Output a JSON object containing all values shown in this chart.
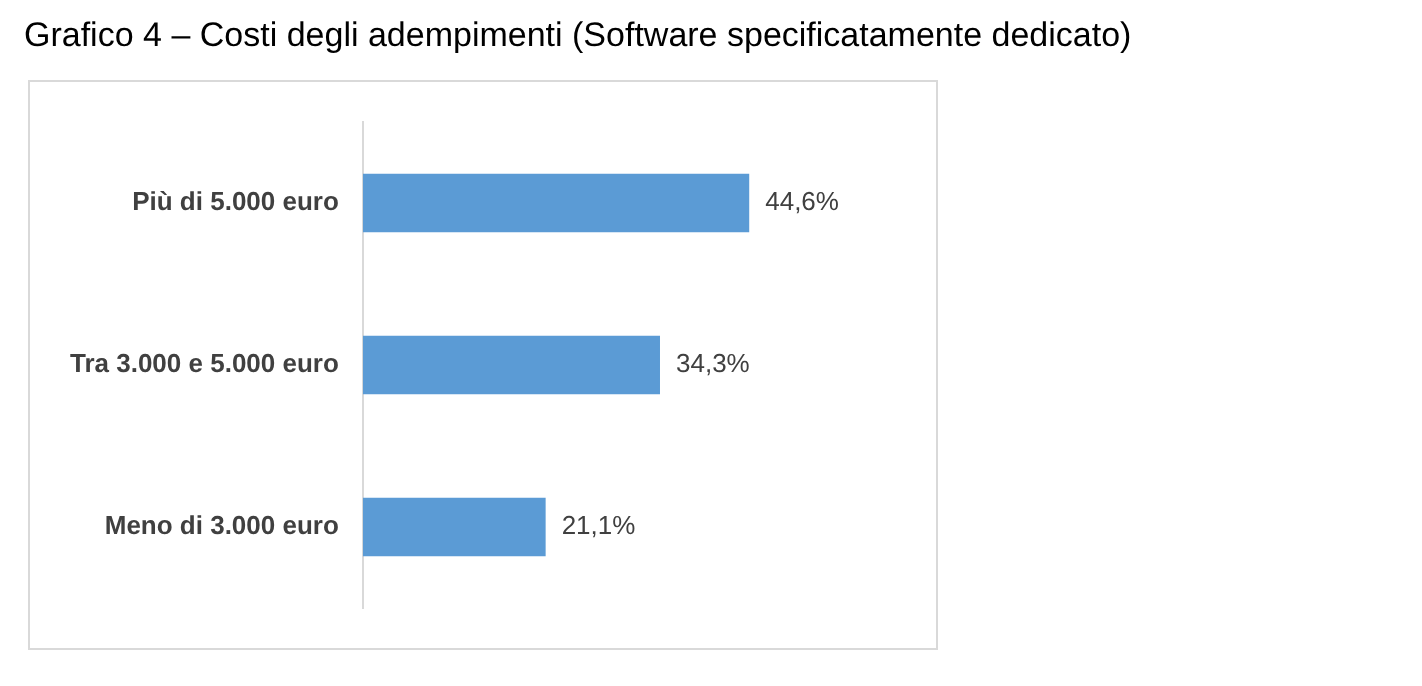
{
  "chart_data": {
    "type": "bar",
    "orientation": "horizontal",
    "title": "Grafico 4 – Costi degli adempimenti (Software specificatamente dedicato)",
    "categories": [
      "Più di 5.000 euro",
      "Tra 3.000 e 5.000 euro",
      "Meno di 3.000 euro"
    ],
    "values": [
      44.6,
      34.3,
      21.1
    ],
    "color": "#5b9bd5",
    "value_labels": [
      "44,6%",
      "34,3%",
      "21,1%"
    ],
    "legend": false
  }
}
